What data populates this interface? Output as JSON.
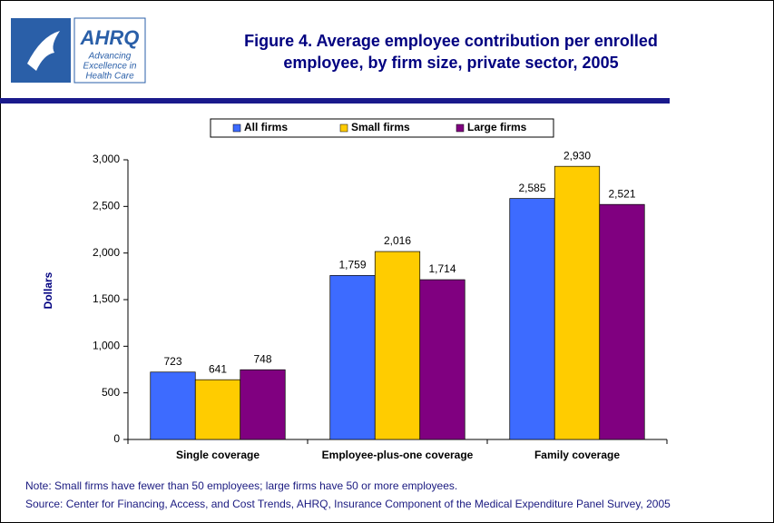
{
  "logo": {
    "name": "AHRQ",
    "tagline": [
      "Advancing",
      "Excellence in",
      "Health Care"
    ]
  },
  "chart_data": {
    "type": "bar",
    "title": [
      "Figure 4. Average employee contribution per enrolled",
      "employee, by firm size, private sector, 2005"
    ],
    "y_label": "Dollars",
    "categories": [
      "Single coverage",
      "Employee-plus-one coverage",
      "Family coverage"
    ],
    "series": [
      {
        "name": "All firms",
        "color": "#3d6bff",
        "values": [
          723,
          1759,
          2585
        ],
        "value_labels": [
          "723",
          "1,759",
          "2,585"
        ]
      },
      {
        "name": "Small firms",
        "color": "#ffcc00",
        "values": [
          641,
          2016,
          2930
        ],
        "value_labels": [
          "641",
          "2,016",
          "2,930"
        ]
      },
      {
        "name": "Large firms",
        "color": "#800080",
        "values": [
          748,
          1714,
          2521
        ],
        "value_labels": [
          "748",
          "1,714",
          "2,521"
        ]
      }
    ],
    "ylim": [
      0,
      3000
    ],
    "yticks": [
      0,
      500,
      {
        "value": 1000,
        "label": "1,000"
      },
      {
        "value": 1500,
        "label": "1,500"
      },
      {
        "value": 2000,
        "label": "2,000"
      },
      {
        "value": 2500,
        "label": "2,500"
      },
      {
        "value": 3000,
        "label": "3,000"
      }
    ],
    "legend": "top",
    "notes": [
      "Note: Small firms have fewer than 50 employees; large firms have 50 or more employees.",
      "Source: Center for Financing, Access, and Cost Trends, AHRQ, Insurance Component of the Medical Expenditure Panel Survey, 2005"
    ]
  }
}
